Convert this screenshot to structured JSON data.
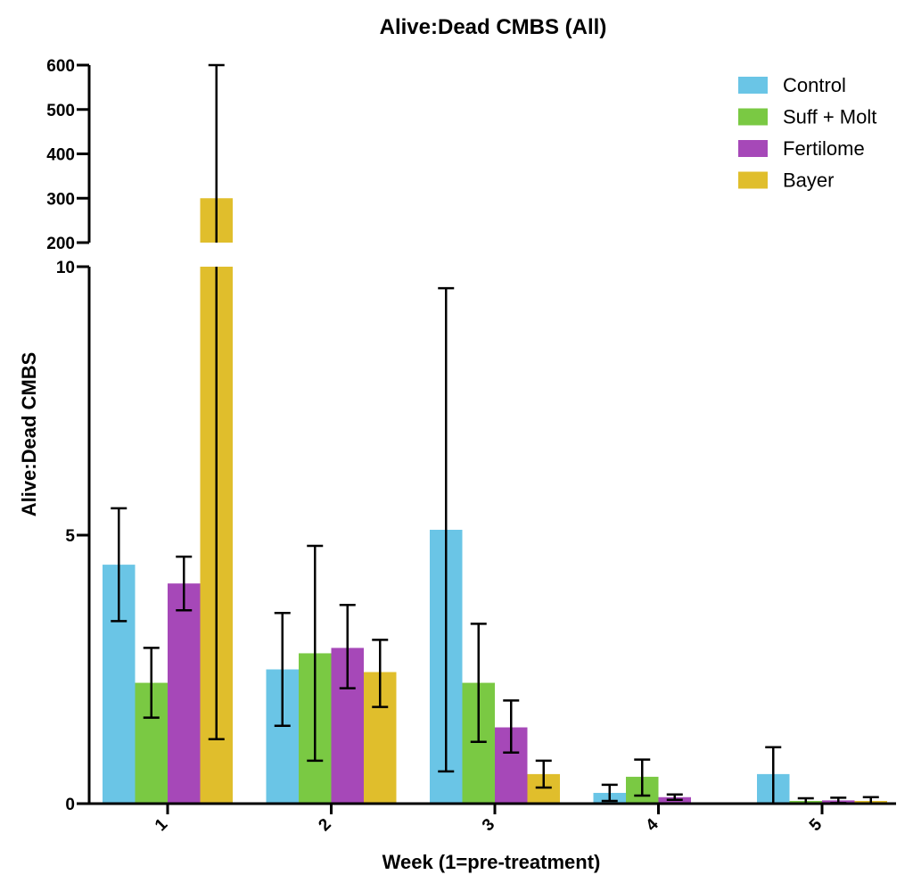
{
  "chart_data": {
    "type": "bar",
    "title": "Alive:Dead CMBS (All)",
    "xlabel": "Week (1=pre-treatment)",
    "ylabel": "Alive:Dead CMBS",
    "categories": [
      "1",
      "2",
      "3",
      "4",
      "5"
    ],
    "y_axis_break": {
      "lower_range": [
        0,
        10
      ],
      "upper_range": [
        200,
        600
      ],
      "lower_ticks": [
        {
          "value": 0,
          "label": "0"
        },
        {
          "value": 5,
          "label": "5"
        },
        {
          "value": 10,
          "label": "10"
        }
      ],
      "upper_ticks": [
        {
          "value": 200,
          "label": "200"
        },
        {
          "value": 300,
          "label": "300"
        },
        {
          "value": 400,
          "label": "400"
        },
        {
          "value": 500,
          "label": "500"
        },
        {
          "value": 600,
          "label": "600"
        }
      ]
    },
    "series": [
      {
        "name": "Control",
        "color": "#6ac5e6",
        "values": [
          4.45,
          2.5,
          5.1,
          0.2,
          0.55
        ],
        "error_low": [
          3.4,
          1.45,
          0.6,
          0.05,
          0.0
        ],
        "error_high": [
          5.5,
          3.55,
          9.6,
          0.35,
          1.05
        ]
      },
      {
        "name": "Suff + Molt",
        "color": "#7ac943",
        "values": [
          2.25,
          2.8,
          2.25,
          0.5,
          0.05
        ],
        "error_low": [
          1.6,
          0.8,
          1.15,
          0.15,
          0.0
        ],
        "error_high": [
          2.9,
          4.8,
          3.35,
          0.82,
          0.1
        ]
      },
      {
        "name": "Fertilome",
        "color": "#a648b8",
        "values": [
          4.1,
          2.9,
          1.42,
          0.12,
          0.06
        ],
        "error_low": [
          3.6,
          2.15,
          0.95,
          0.07,
          0.01
        ],
        "error_high": [
          4.6,
          3.7,
          1.92,
          0.17,
          0.11
        ]
      },
      {
        "name": "Bayer",
        "color": "#e0be2c",
        "values": [
          300,
          2.45,
          0.55,
          0.0,
          0.05
        ],
        "error_low": [
          1.2,
          1.8,
          0.3,
          0.0,
          0.0
        ],
        "error_high": [
          600,
          3.05,
          0.8,
          0.0,
          0.12
        ]
      }
    ],
    "legend_position": "top-right",
    "grid": false
  }
}
